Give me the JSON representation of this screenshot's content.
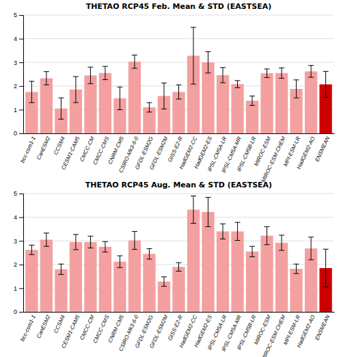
{
  "chart_data": [
    {
      "type": "bar",
      "title": "THETAO RCP45 Feb. Mean & STD (EASTSEA)",
      "categories": [
        "bcc-csm1-1",
        "CanESM2",
        "CCSM4",
        "CESM1-CAM5",
        "CMCC-CM",
        "CMCC-CMS",
        "CNRM-CM5",
        "CSIRO-Mk3-6-0",
        "GFDL-ESM2G",
        "GFDL-ESM2M",
        "GISS-E2-R",
        "HadGEM2-CC",
        "HadGEM2-ES",
        "IPSL-CM5A-LR",
        "IPSL-CM5A-MR",
        "IPSL-CM5B-LR",
        "MIROC-ESM",
        "MIROC-ESM-CHEM",
        "MPI-ESM-LR",
        "HadGEM2-AO",
        "ENSMEAN"
      ],
      "values": [
        1.75,
        2.33,
        1.05,
        1.85,
        2.45,
        2.55,
        1.48,
        3.03,
        1.1,
        1.58,
        1.75,
        3.28,
        3.0,
        2.46,
        2.08,
        1.38,
        2.54,
        2.55,
        1.88,
        2.62,
        2.07
      ],
      "errors": [
        0.45,
        0.28,
        0.45,
        0.55,
        0.35,
        0.28,
        0.48,
        0.28,
        0.2,
        0.55,
        0.3,
        1.2,
        0.45,
        0.32,
        0.15,
        0.2,
        0.18,
        0.22,
        0.38,
        0.25,
        0.55
      ],
      "colors": [
        "#F4A0A0",
        "#F4A0A0",
        "#F4A0A0",
        "#F4A0A0",
        "#F4A0A0",
        "#F4A0A0",
        "#F4A0A0",
        "#F4A0A0",
        "#F4A0A0",
        "#F4A0A0",
        "#F4A0A0",
        "#F4A0A0",
        "#F4A0A0",
        "#F4A0A0",
        "#F4A0A0",
        "#F4A0A0",
        "#F4A0A0",
        "#F4A0A0",
        "#F4A0A0",
        "#F4A0A0",
        "#CC0000"
      ],
      "ylim": [
        0,
        5
      ],
      "yticks": [
        0,
        1,
        2,
        3,
        4,
        5
      ],
      "grid": true
    },
    {
      "type": "bar",
      "title": "THETAO RCP45 Aug. Mean & STD (EASTSEA)",
      "categories": [
        "bcc-csm1-1",
        "CanESM2",
        "CCSM4",
        "CESM1-CAM5",
        "CMCC-CM",
        "CMCC-CMS",
        "CNRM-CM5",
        "CSIRO-Mk3-6-0",
        "GFDL-ESM2G",
        "GFDL-ESM2M",
        "GISS-E2-R",
        "HadGEM2-CC",
        "HadGEM2-ES",
        "IPSL-CM5A-LR",
        "IPSL-CM5A-MR",
        "IPSL-CM5B-LR",
        "MIROC-ESM",
        "MIROC-ESM-CHEM",
        "MPI-ESM-LR",
        "HadGEM2-AO",
        "ENSMEAN"
      ],
      "values": [
        2.62,
        3.05,
        1.8,
        2.95,
        2.95,
        2.75,
        2.12,
        3.02,
        2.45,
        1.28,
        1.9,
        4.32,
        4.22,
        3.4,
        3.4,
        2.55,
        3.22,
        2.92,
        1.82,
        2.68,
        1.85
      ],
      "errors": [
        0.2,
        0.28,
        0.22,
        0.32,
        0.25,
        0.22,
        0.25,
        0.38,
        0.22,
        0.2,
        0.18,
        0.58,
        0.62,
        0.32,
        0.38,
        0.22,
        0.38,
        0.32,
        0.2,
        0.48,
        0.8
      ],
      "colors": [
        "#F4A0A0",
        "#F4A0A0",
        "#F4A0A0",
        "#F4A0A0",
        "#F4A0A0",
        "#F4A0A0",
        "#F4A0A0",
        "#F4A0A0",
        "#F4A0A0",
        "#F4A0A0",
        "#F4A0A0",
        "#F4A0A0",
        "#F4A0A0",
        "#F4A0A0",
        "#F4A0A0",
        "#F4A0A0",
        "#F4A0A0",
        "#F4A0A0",
        "#F4A0A0",
        "#F4A0A0",
        "#CC0000"
      ],
      "ylim": [
        0,
        5
      ],
      "yticks": [
        0,
        1,
        2,
        3,
        4,
        5
      ],
      "grid": true
    }
  ]
}
